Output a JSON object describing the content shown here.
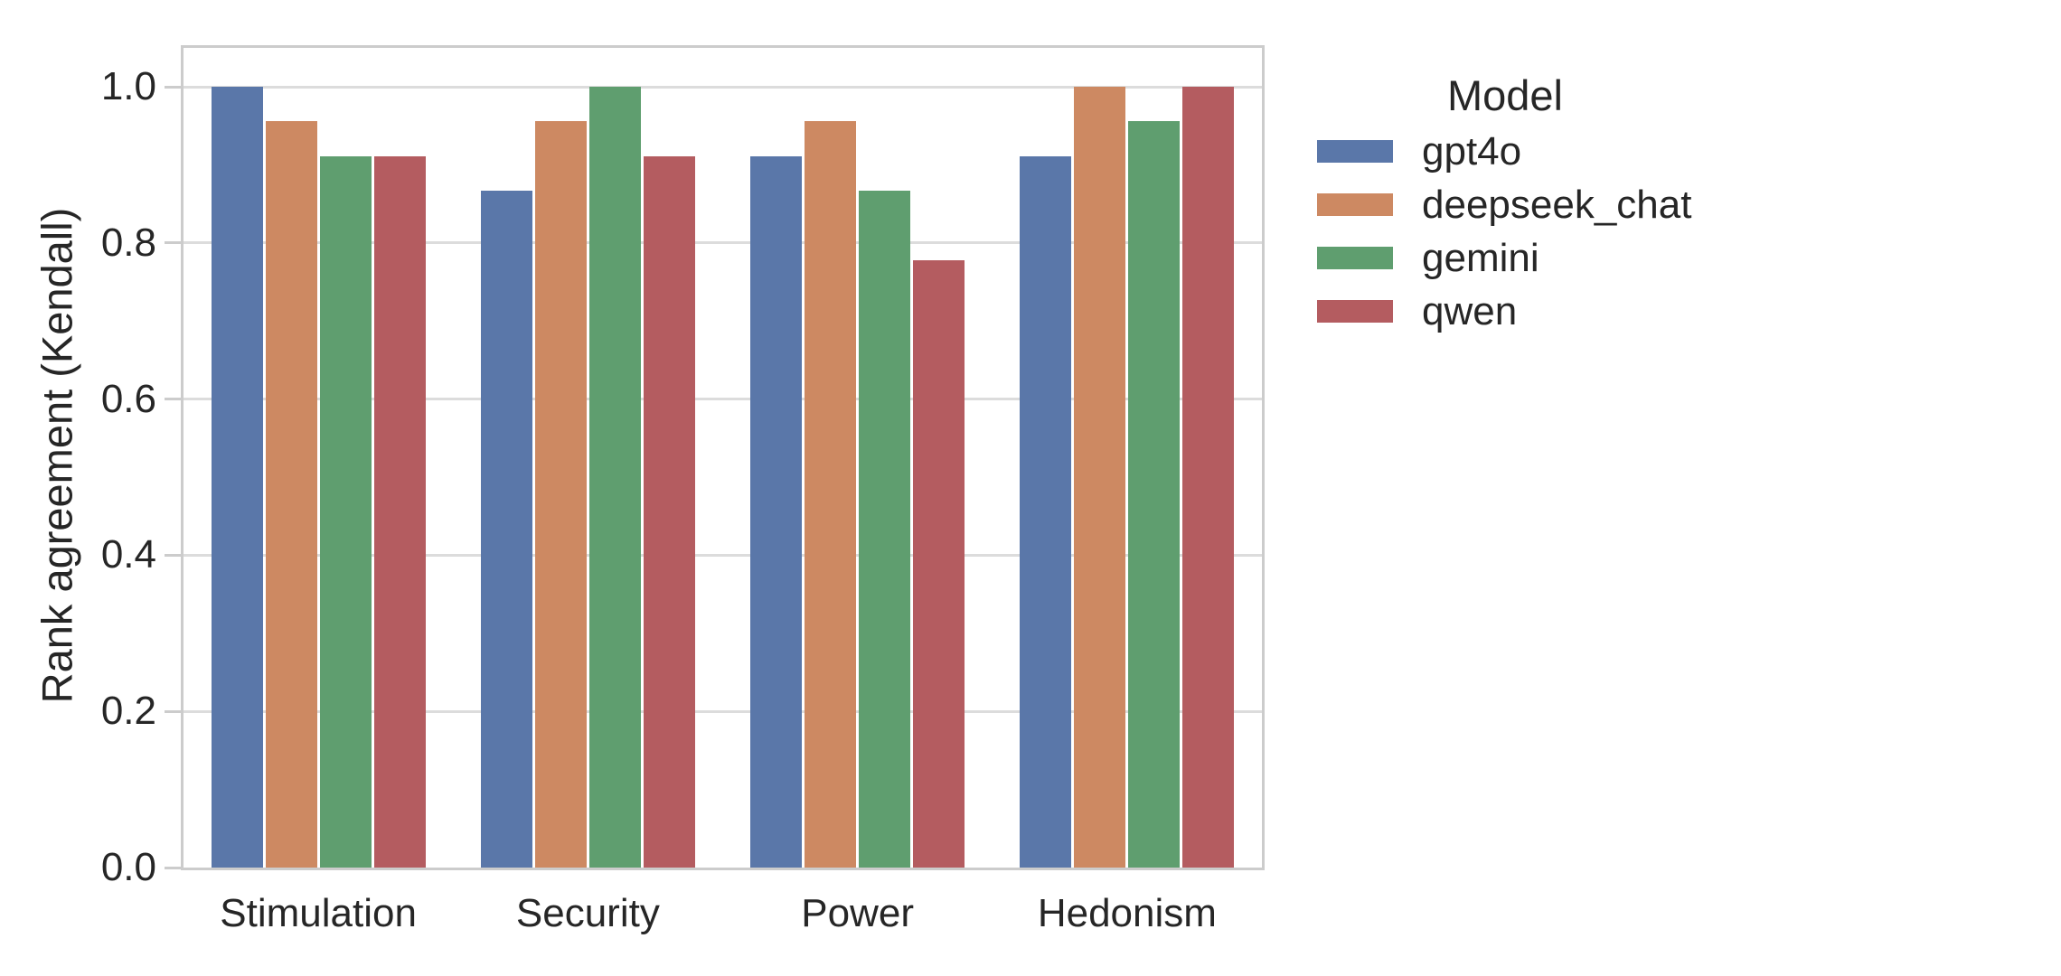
{
  "figure": {
    "background": "#ffffff",
    "text_color": "#262626",
    "grid_color": "#dcdcdc",
    "spine_color": "#cccccc"
  },
  "chart_data": {
    "type": "bar",
    "title": "",
    "xlabel": "",
    "ylabel": "Rank agreement (Kendall)",
    "categories": [
      "Stimulation",
      "Security",
      "Power",
      "Hedonism"
    ],
    "series": [
      {
        "name": "gpt4o",
        "color": "#5A77A9",
        "values": [
          1.0,
          0.867,
          0.911,
          0.911
        ]
      },
      {
        "name": "deepseek_chat",
        "color": "#CD8962",
        "values": [
          0.956,
          0.956,
          0.956,
          1.0
        ]
      },
      {
        "name": "gemini",
        "color": "#5F9E6F",
        "values": [
          0.911,
          1.0,
          0.867,
          0.956
        ]
      },
      {
        "name": "qwen",
        "color": "#B45C60",
        "values": [
          0.911,
          0.911,
          0.778,
          1.0
        ]
      }
    ],
    "ylim": [
      0,
      1.05
    ],
    "yticks": [
      0.0,
      0.2,
      0.4,
      0.6,
      0.8,
      1.0
    ],
    "ytick_labels": [
      "0.0",
      "0.2",
      "0.4",
      "0.6",
      "0.8",
      "1.0"
    ],
    "grid": true,
    "legend": {
      "title": "Model",
      "position": "right-outside"
    }
  }
}
